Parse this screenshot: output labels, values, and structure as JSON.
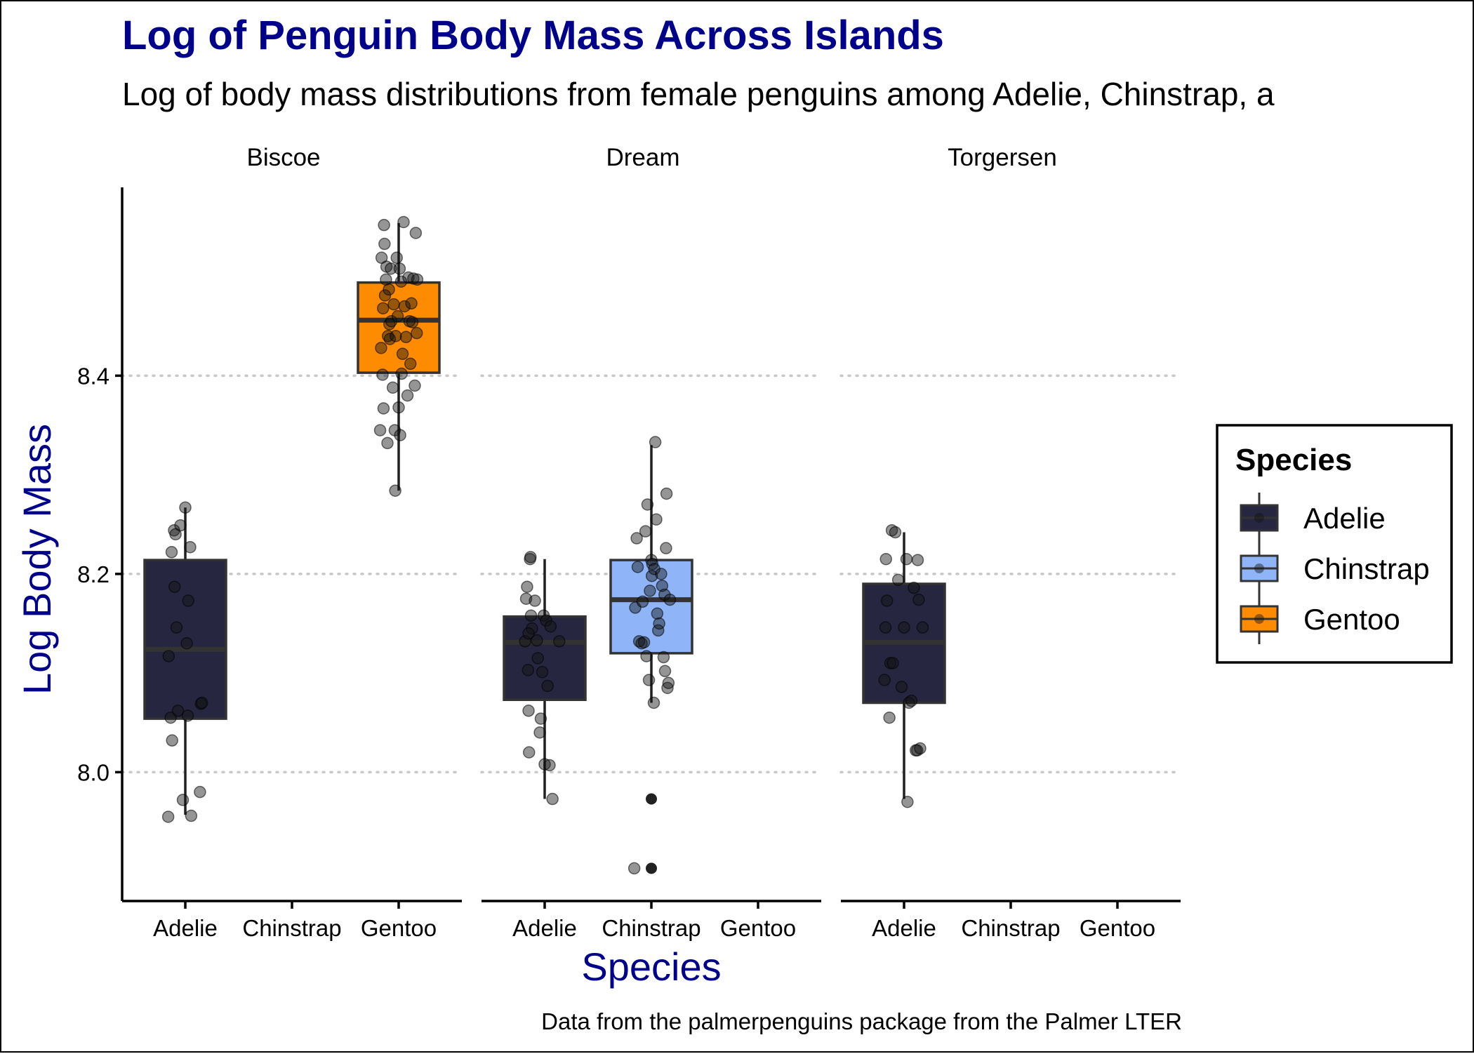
{
  "chart_data": {
    "type": "boxplot",
    "title": "Log of Penguin Body Mass Across Islands",
    "subtitle": "Log of body mass distributions from female penguins among Adelie, Chinstrap, a",
    "xlabel": "Species",
    "ylabel": "Log Body Mass",
    "caption": "Data from the palmerpenguins package from the Palmer LTER",
    "categories": [
      "Adelie",
      "Chinstrap",
      "Gentoo"
    ],
    "y_ticks": [
      8.0,
      8.2,
      8.4
    ],
    "y_tick_labels": [
      "8.0",
      "8.2",
      "8.4"
    ],
    "ylim": [
      7.87,
      8.59
    ],
    "grid": "dotted major y gridlines",
    "legend": {
      "title": "Species",
      "position": "right",
      "items": [
        {
          "label": "Adelie",
          "color": "#262640"
        },
        {
          "label": "Chinstrap",
          "color": "#8fb4f8"
        },
        {
          "label": "Gentoo",
          "color": "#ff8c00"
        }
      ]
    },
    "colors": {
      "title": "#00008b",
      "axis_title": "#00008b",
      "grid": "#c8c8c8",
      "box_outline": "#333333",
      "point": "#222222"
    },
    "facets": [
      {
        "name": "Biscoe",
        "boxes": [
          {
            "species": "Adelie",
            "q1": 8.054,
            "median": 8.124,
            "q3": 8.214,
            "whisker_low": 7.957,
            "whisker_high": 8.267,
            "outliers": [],
            "points": [
              [
                -0.35,
                7.955
              ],
              [
                -0.34,
                8.117
              ],
              [
                -0.3,
                8.055
              ],
              [
                -0.28,
                8.222
              ],
              [
                -0.27,
                8.032
              ],
              [
                -0.23,
                8.244
              ],
              [
                -0.22,
                8.187
              ],
              [
                -0.18,
                8.146
              ],
              [
                -0.15,
                8.062
              ],
              [
                -0.1,
                8.249
              ],
              [
                -0.05,
                7.972
              ],
              [
                0.0,
                8.267
              ],
              [
                0.03,
                8.13
              ],
              [
                0.05,
                8.057
              ],
              [
                0.06,
                8.173
              ],
              [
                0.12,
                7.956
              ],
              [
                0.1,
                8.227
              ],
              [
                0.3,
                7.98
              ],
              [
                0.32,
                8.069
              ],
              [
                0.34,
                8.07
              ],
              [
                -0.2,
                8.24
              ]
            ]
          },
          {
            "species": "Gentoo",
            "q1": 8.403,
            "median": 8.456,
            "q3": 8.494,
            "whisker_low": 8.284,
            "whisker_high": 8.554,
            "outliers": [],
            "points": [
              [
                -0.38,
                8.345
              ],
              [
                -0.36,
                8.428
              ],
              [
                -0.35,
                8.519
              ],
              [
                -0.33,
                8.401
              ],
              [
                -0.32,
                8.468
              ],
              [
                -0.31,
                8.367
              ],
              [
                -0.3,
                8.552
              ],
              [
                -0.29,
                8.533
              ],
              [
                -0.28,
                8.481
              ],
              [
                -0.26,
                8.497
              ],
              [
                -0.25,
                8.51
              ],
              [
                -0.23,
                8.332
              ],
              [
                -0.22,
                8.44
              ],
              [
                -0.2,
                8.487
              ],
              [
                -0.19,
                8.452
              ],
              [
                -0.18,
                8.437
              ],
              [
                -0.16,
                8.508
              ],
              [
                -0.15,
                8.455
              ],
              [
                -0.12,
                8.388
              ],
              [
                -0.1,
                8.472
              ],
              [
                -0.08,
                8.345
              ],
              [
                -0.07,
                8.284
              ],
              [
                -0.06,
                8.44
              ],
              [
                -0.04,
                8.519
              ],
              [
                -0.02,
                8.46
              ],
              [
                0.0,
                8.368
              ],
              [
                0.02,
                8.508
              ],
              [
                0.03,
                8.34
              ],
              [
                0.05,
                8.495
              ],
              [
                0.06,
                8.402
              ],
              [
                0.08,
                8.422
              ],
              [
                0.1,
                8.555
              ],
              [
                0.12,
                8.47
              ],
              [
                0.15,
                8.439
              ],
              [
                0.18,
                8.38
              ],
              [
                0.2,
                8.499
              ],
              [
                0.22,
                8.455
              ],
              [
                0.24,
                8.412
              ],
              [
                0.26,
                8.473
              ],
              [
                0.28,
                8.454
              ],
              [
                0.3,
                8.498
              ],
              [
                0.33,
                8.39
              ],
              [
                0.35,
                8.544
              ],
              [
                0.37,
                8.443
              ],
              [
                0.38,
                8.497
              ]
            ]
          }
        ]
      },
      {
        "name": "Dream",
        "boxes": [
          {
            "species": "Adelie",
            "q1": 8.073,
            "median": 8.131,
            "q3": 8.157,
            "whisker_low": 7.973,
            "whisker_high": 8.215,
            "outliers": [],
            "points": [
              [
                -0.4,
                8.132
              ],
              [
                -0.38,
                8.175
              ],
              [
                -0.36,
                8.187
              ],
              [
                -0.34,
                8.103
              ],
              [
                -0.33,
                8.062
              ],
              [
                -0.32,
                8.02
              ],
              [
                -0.3,
                8.215
              ],
              [
                -0.28,
                8.158
              ],
              [
                -0.26,
                8.145
              ],
              [
                -0.2,
                8.173
              ],
              [
                -0.16,
                8.133
              ],
              [
                -0.14,
                8.115
              ],
              [
                -0.1,
                8.04
              ],
              [
                -0.08,
                8.054
              ],
              [
                -0.05,
                8.101
              ],
              [
                -0.02,
                8.158
              ],
              [
                0.0,
                8.008
              ],
              [
                0.03,
                8.153
              ],
              [
                0.06,
                8.087
              ],
              [
                0.1,
                8.007
              ],
              [
                0.12,
                8.147
              ],
              [
                0.16,
                7.973
              ],
              [
                0.3,
                8.132
              ],
              [
                -0.33,
                8.14
              ],
              [
                -0.29,
                8.217
              ]
            ]
          },
          {
            "species": "Chinstrap",
            "q1": 8.12,
            "median": 8.174,
            "q3": 8.214,
            "whisker_low": 8.07,
            "whisker_high": 8.33,
            "outliers": [
              7.973,
              7.903
            ],
            "points": [
              [
                -0.35,
                7.903
              ],
              [
                -0.33,
                8.166
              ],
              [
                -0.3,
                8.236
              ],
              [
                -0.28,
                8.207
              ],
              [
                -0.25,
                8.132
              ],
              [
                -0.2,
                8.13
              ],
              [
                -0.18,
                8.172
              ],
              [
                -0.15,
                8.131
              ],
              [
                -0.12,
                8.243
              ],
              [
                -0.1,
                8.117
              ],
              [
                -0.08,
                8.27
              ],
              [
                -0.05,
                8.093
              ],
              [
                -0.03,
                8.183
              ],
              [
                0.0,
                8.214
              ],
              [
                0.01,
                8.198
              ],
              [
                0.02,
                8.21
              ],
              [
                0.05,
                8.07
              ],
              [
                0.06,
                8.205
              ],
              [
                0.08,
                8.333
              ],
              [
                0.1,
                8.255
              ],
              [
                0.12,
                8.16
              ],
              [
                0.14,
                8.143
              ],
              [
                0.16,
                8.15
              ],
              [
                0.2,
                8.2
              ],
              [
                0.22,
                8.188
              ],
              [
                0.25,
                8.116
              ],
              [
                0.27,
                8.179
              ],
              [
                0.28,
                8.102
              ],
              [
                0.3,
                8.226
              ],
              [
                0.31,
                8.281
              ],
              [
                0.33,
                8.085
              ],
              [
                0.35,
                8.09
              ],
              [
                0.38,
                8.174
              ]
            ]
          }
        ]
      },
      {
        "name": "Torgersen",
        "boxes": [
          {
            "species": "Adelie",
            "q1": 8.07,
            "median": 8.131,
            "q3": 8.19,
            "whisker_low": 7.973,
            "whisker_high": 8.242,
            "outliers": [],
            "points": [
              [
                -0.4,
                8.093
              ],
              [
                -0.38,
                8.146
              ],
              [
                -0.37,
                8.215
              ],
              [
                -0.35,
                8.173
              ],
              [
                -0.3,
                8.055
              ],
              [
                -0.28,
                8.11
              ],
              [
                -0.25,
                8.244
              ],
              [
                -0.23,
                8.11
              ],
              [
                -0.18,
                8.242
              ],
              [
                -0.12,
                8.194
              ],
              [
                -0.05,
                8.086
              ],
              [
                0.0,
                8.146
              ],
              [
                0.05,
                8.215
              ],
              [
                0.1,
                8.07
              ],
              [
                0.15,
                8.072
              ],
              [
                0.2,
                8.186
              ],
              [
                0.24,
                8.022
              ],
              [
                0.27,
                8.022
              ],
              [
                0.28,
                8.214
              ],
              [
                0.3,
                8.174
              ],
              [
                0.33,
                8.024
              ],
              [
                0.38,
                8.146
              ],
              [
                0.07,
                7.97
              ]
            ]
          }
        ]
      }
    ]
  }
}
